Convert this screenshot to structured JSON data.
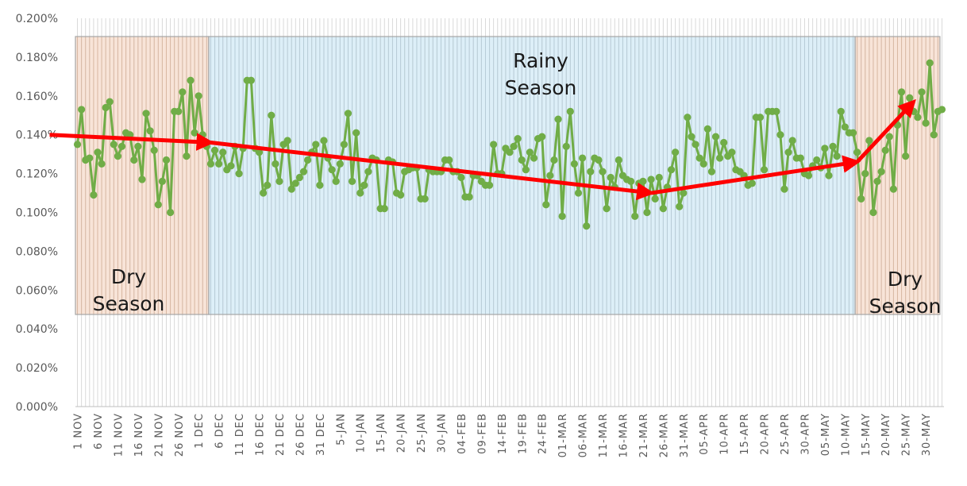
{
  "chart_data": {
    "type": "line",
    "title": "",
    "xlabel": "",
    "ylabel": "",
    "ylim": [
      0,
      0.2
    ],
    "y_ticks": [
      "0.000%",
      "0.020%",
      "0.040%",
      "0.060%",
      "0.080%",
      "0.100%",
      "0.120%",
      "0.140%",
      "0.160%",
      "0.180%",
      "0.200%"
    ],
    "x_tick_labels": [
      "1 NOV",
      "6 NOV",
      "11 NOV",
      "16 NOV",
      "21 NOV",
      "26 NOV",
      "1 DEC",
      "6 DEC",
      "11 DEC",
      "16 DEC",
      "21 DEC",
      "26 DEC",
      "31 DEC",
      "5-JAN",
      "10-JAN",
      "15-JAN",
      "20-JAN",
      "25-JAN",
      "30-JAN",
      "04-FEB",
      "09-FEB",
      "14-FEB",
      "19-FEB",
      "24-FEB",
      "01-MAR",
      "06-MAR",
      "11-MAR",
      "16-MAR",
      "21-MAR",
      "26-MAR",
      "31-MAR",
      "05-APR",
      "10-APR",
      "15-APR",
      "20-APR",
      "25-APR",
      "30-APR",
      "05-MAY",
      "10-MAY",
      "15-MAY",
      "20-MAY",
      "25-MAY",
      "30-MAY"
    ],
    "grid": "vertical",
    "line_color": "#70AD47",
    "trend_color": "#FF0000",
    "seasons": [
      {
        "label_line1": "Dry",
        "label_line2": "Season",
        "start_index": 0,
        "end_index": 33,
        "color": "#F8E4D8",
        "stripe": "#D9A889"
      },
      {
        "label_line1": "Rainy",
        "label_line2": "Season",
        "start_index": 33,
        "end_index": 193,
        "color": "#DDEFF8",
        "stripe": "#A8C6D6"
      },
      {
        "label_line1": "Dry",
        "label_line2": "Season",
        "start_index": 193,
        "end_index": 214,
        "color": "#F8E4D8",
        "stripe": "#D9A889"
      }
    ],
    "trend_lines": [
      {
        "from": [
          0,
          0.14
        ],
        "to": [
          33,
          0.136
        ]
      },
      {
        "from": [
          33,
          0.136
        ],
        "to": [
          142,
          0.11
        ]
      },
      {
        "from": [
          142,
          0.11
        ],
        "to": [
          193,
          0.126
        ]
      },
      {
        "from": [
          193,
          0.126
        ],
        "to": [
          207,
          0.157
        ]
      }
    ],
    "series": [
      {
        "values": [
          0.135,
          0.153,
          0.127,
          0.128,
          0.109,
          0.131,
          0.125,
          0.154,
          0.157,
          0.135,
          0.129,
          0.134,
          0.141,
          0.14,
          0.127,
          0.134,
          0.117,
          0.151,
          0.142,
          0.132,
          0.104,
          0.116,
          0.127,
          0.1,
          0.152,
          0.152,
          0.162,
          0.129,
          0.168,
          0.141,
          0.16,
          0.14,
          0.134,
          0.125,
          0.132,
          0.125,
          0.131,
          0.122,
          0.124,
          0.134,
          0.12,
          0.133,
          0.168,
          0.168,
          0.133,
          0.131,
          0.11,
          0.114,
          0.15,
          0.125,
          0.116,
          0.135,
          0.137,
          0.112,
          0.115,
          0.118,
          0.121,
          0.127,
          0.131,
          0.135,
          0.114,
          0.137,
          0.128,
          0.122,
          0.116,
          0.125,
          0.135,
          0.151,
          0.116,
          0.141,
          0.11,
          0.114,
          0.121,
          0.128,
          0.127,
          0.102,
          0.102,
          0.127,
          0.126,
          0.11,
          0.109,
          0.121,
          0.122,
          0.123,
          0.123,
          0.107,
          0.107,
          0.122,
          0.121,
          0.121,
          0.121,
          0.127,
          0.127,
          0.121,
          0.121,
          0.118,
          0.108,
          0.108,
          0.119,
          0.119,
          0.116,
          0.114,
          0.114,
          0.135,
          0.12,
          0.12,
          0.133,
          0.131,
          0.134,
          0.138,
          0.127,
          0.122,
          0.131,
          0.128,
          0.138,
          0.139,
          0.104,
          0.119,
          0.127,
          0.148,
          0.098,
          0.134,
          0.152,
          0.125,
          0.11,
          0.128,
          0.093,
          0.121,
          0.128,
          0.127,
          0.121,
          0.102,
          0.118,
          0.113,
          0.127,
          0.119,
          0.117,
          0.116,
          0.098,
          0.115,
          0.116,
          0.1,
          0.117,
          0.107,
          0.118,
          0.102,
          0.113,
          0.122,
          0.131,
          0.103,
          0.11,
          0.149,
          0.139,
          0.135,
          0.128,
          0.125,
          0.143,
          0.121,
          0.139,
          0.128,
          0.136,
          0.129,
          0.131,
          0.122,
          0.121,
          0.119,
          0.114,
          0.115,
          0.149,
          0.149,
          0.122,
          0.152,
          0.152,
          0.152,
          0.14,
          0.112,
          0.131,
          0.137,
          0.128,
          0.128,
          0.12,
          0.119,
          0.124,
          0.127,
          0.123,
          0.133,
          0.119,
          0.134,
          0.129,
          0.152,
          0.144,
          0.141,
          0.141,
          0.131,
          0.107,
          0.12,
          0.137,
          0.1,
          0.116,
          0.121,
          0.132,
          0.139,
          0.112,
          0.145,
          0.162,
          0.129,
          0.159,
          0.152,
          0.149,
          0.162,
          0.146,
          0.177,
          0.14,
          0.152,
          0.153
        ]
      }
    ]
  }
}
